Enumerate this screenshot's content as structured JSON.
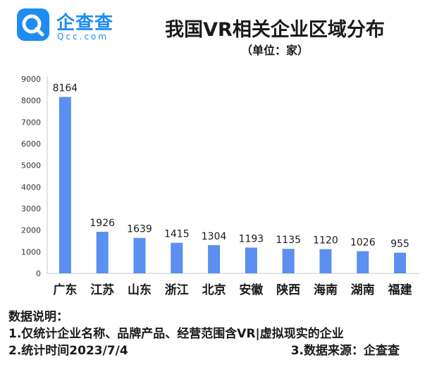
{
  "logo": {
    "icon": "qcc-logo-icon",
    "brand_color": "#1f8cf2",
    "name": "企查查",
    "domain": "Qcc.com"
  },
  "chart_data": {
    "type": "bar",
    "title": "我国VR相关企业区域分布",
    "subtitle": "（单位：家）",
    "categories": [
      "广东",
      "江苏",
      "山东",
      "浙江",
      "北京",
      "安徽",
      "陕西",
      "海南",
      "湖南",
      "福建"
    ],
    "values": [
      8164,
      1926,
      1639,
      1415,
      1304,
      1193,
      1135,
      1120,
      1026,
      955
    ],
    "data_labels": [
      "8164",
      "1926",
      "1639",
      "1415",
      "1304",
      "1193",
      "1135",
      "1120",
      "1026",
      "955"
    ],
    "y_ticks": [
      "0",
      "1000",
      "2000",
      "3000",
      "4000",
      "5000",
      "6000",
      "7000",
      "8000",
      "9000"
    ],
    "ylim": [
      0,
      9000
    ],
    "xlabel": "",
    "ylabel": "",
    "grid": false,
    "legend": "none",
    "bar_color": "#5b8ff0"
  },
  "notes": {
    "heading": "数据说明：",
    "line1": "1.仅统计企业名称、品牌产品、经营范围含VR|虚拟现实的企业",
    "line2": "2.统计时间2023/7/4",
    "line3": "3.数据来源：企查查"
  }
}
